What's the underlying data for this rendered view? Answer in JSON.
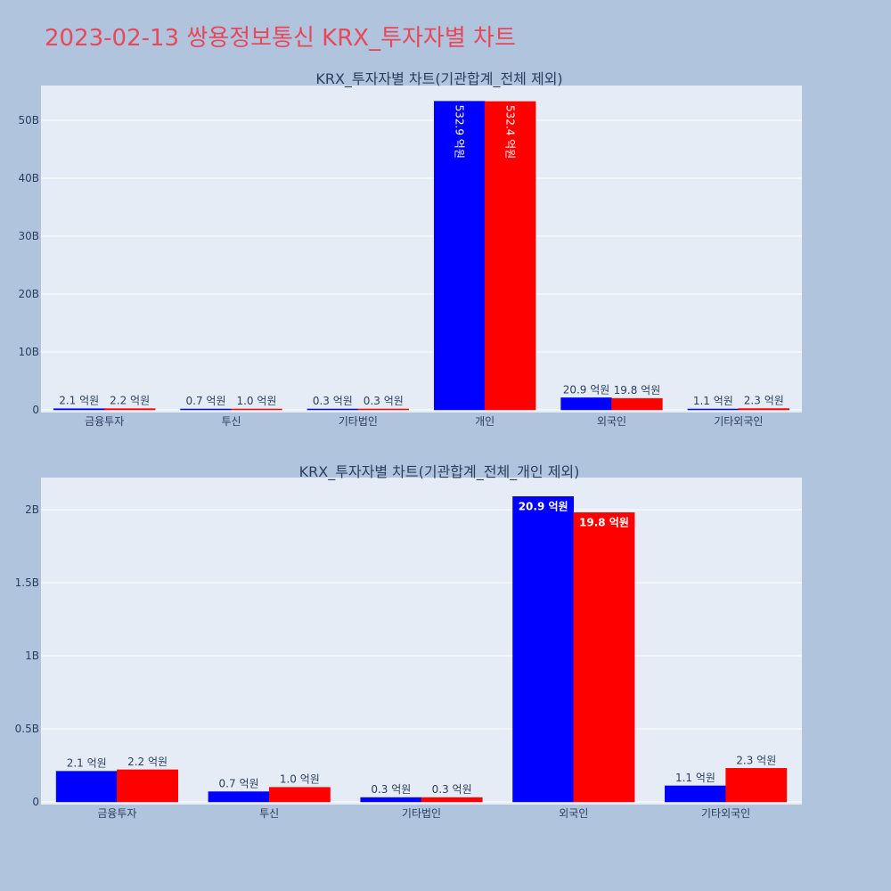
{
  "page": {
    "title": "2023-02-13 쌍용정보통신 KRX_투자자별 차트"
  },
  "colors": {
    "buy": "#0000ff",
    "sell": "#ff0000",
    "plot_bg": "#e5ecf6",
    "page_bg": "#b0c4de",
    "title": "#e8485a"
  },
  "chart_data": [
    {
      "type": "bar",
      "title": "KRX_투자자별 차트(기관합계_전체 제외)",
      "categories": [
        "금융투자",
        "투신",
        "기타법인",
        "개인",
        "외국인",
        "기타외국인"
      ],
      "series": [
        {
          "color": "#0000ff",
          "values": [
            210000000,
            70000000,
            30000000,
            53290000000,
            2090000000,
            110000000
          ],
          "labels": [
            "2.1 억원",
            "0.7 억원",
            "0.3 억원",
            "532.9 억원",
            "20.9 억원",
            "1.1 억원"
          ]
        },
        {
          "color": "#ff0000",
          "values": [
            220000000,
            100000000,
            30000000,
            53240000000,
            1980000000,
            230000000
          ],
          "labels": [
            "2.2 억원",
            "1.0 억원",
            "0.3 억원",
            "532.4 억원",
            "19.8 억원",
            "2.3 억원"
          ]
        }
      ],
      "ylim": [
        0,
        56000000000
      ],
      "yticks": [
        0,
        10000000000,
        20000000000,
        30000000000,
        40000000000,
        50000000000
      ],
      "ytick_labels": [
        "0",
        "10B",
        "20B",
        "30B",
        "40B",
        "50B"
      ],
      "grid": true
    },
    {
      "type": "bar",
      "title": "KRX_투자자별 차트(기관합계_전체_개인 제외)",
      "categories": [
        "금융투자",
        "투신",
        "기타법인",
        "외국인",
        "기타외국인"
      ],
      "series": [
        {
          "color": "#0000ff",
          "values": [
            210000000,
            70000000,
            30000000,
            2090000000,
            110000000
          ],
          "labels": [
            "2.1 억원",
            "0.7 억원",
            "0.3 억원",
            "20.9 억원",
            "1.1 억원"
          ]
        },
        {
          "color": "#ff0000",
          "values": [
            220000000,
            100000000,
            30000000,
            1980000000,
            230000000
          ],
          "labels": [
            "2.2 억원",
            "1.0 억원",
            "0.3 억원",
            "19.8 억원",
            "2.3 억원"
          ]
        }
      ],
      "ylim": [
        0,
        2220000000
      ],
      "yticks": [
        0,
        500000000,
        1000000000,
        1500000000,
        2000000000
      ],
      "ytick_labels": [
        "0",
        "0.5B",
        "1B",
        "1.5B",
        "2B"
      ],
      "grid": true
    }
  ]
}
